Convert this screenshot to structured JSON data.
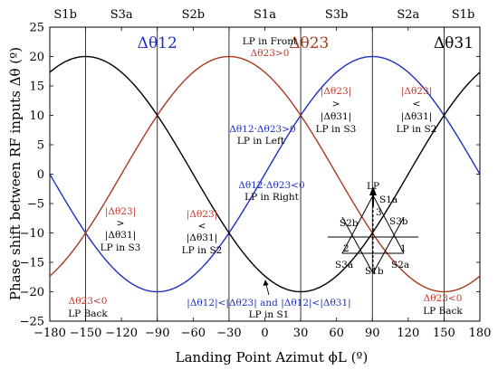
{
  "chart_data": {
    "type": "line",
    "xlabel": "Landing Point Azimut ϕL (º)",
    "ylabel": "Phase shift between RF inputs Δθ (º)",
    "xlim": [
      -180,
      180
    ],
    "ylim": [
      -25,
      25
    ],
    "xticks": [
      -180,
      -150,
      -120,
      -90,
      -60,
      -30,
      0,
      30,
      60,
      90,
      120,
      150,
      180
    ],
    "yticks": [
      -25,
      -20,
      -15,
      -10,
      -5,
      0,
      5,
      10,
      15,
      20,
      25
    ],
    "xtick_labels": [
      "−180",
      "−150",
      "−120",
      "−90",
      "−60",
      "−30",
      "0",
      "30",
      "60",
      "90",
      "120",
      "150",
      "180"
    ],
    "ytick_labels": [
      "−25",
      "−20",
      "−15",
      "−10",
      "−5",
      "0",
      "5",
      "10",
      "15",
      "20",
      "25"
    ],
    "grid": false,
    "amplitude": 20,
    "series": [
      {
        "name": "Δθ12",
        "color": "#1f2fbf",
        "phase_deg": 90,
        "label_at": [
          -90,
          21.5
        ]
      },
      {
        "name": "Δθ23",
        "color": "#a83a1e",
        "phase_deg": -30,
        "label_at": [
          37,
          21.5
        ]
      },
      {
        "name": "Δθ31",
        "color": "#000000",
        "phase_deg": -150,
        "label_at": [
          158,
          21.5
        ]
      }
    ],
    "vertical_lines": [
      -150,
      -90,
      -30,
      30,
      90,
      150
    ],
    "regions": [
      {
        "label": "S1b",
        "x": -167
      },
      {
        "label": "S3a",
        "x": -120
      },
      {
        "label": "S2b",
        "x": -60
      },
      {
        "label": "S1a",
        "x": 0
      },
      {
        "label": "S3b",
        "x": 60
      },
      {
        "label": "S2a",
        "x": 120
      },
      {
        "label": "S1b",
        "x": 166
      }
    ],
    "annotations": {
      "front": [
        "LP in Front",
        "Δθ23>0"
      ],
      "left": [
        "Δθ12·Δθ23>0",
        "LP in Left"
      ],
      "right": [
        "Δθ12·Δθ23<0",
        "LP in Right"
      ],
      "s3_right": [
        "|Δθ23|",
        ">",
        "|Δθ31|",
        "LP in S3"
      ],
      "s2_right": [
        "|Δθ23|",
        "<",
        "|Δθ31|",
        "LP in S2"
      ],
      "s3_left": [
        "|Δθ23|",
        ">",
        "|Δθ31|",
        "LP in S3"
      ],
      "s2_left": [
        "|Δθ23|",
        "<",
        "|Δθ31|",
        "LP in S2"
      ],
      "back_left": [
        "Δθ23<0",
        "LP Back"
      ],
      "back_right": [
        "Δθ23<0",
        "LP Back"
      ],
      "s1": [
        "|Δθ12|<|Δθ23| and |Δθ12|<|Δθ31|",
        "LP in S1"
      ]
    },
    "inset": {
      "labels": [
        "LP",
        "S1a",
        "S2b",
        "S3b",
        "S3a",
        "S2a",
        "S1b",
        "1",
        "2",
        "3"
      ]
    }
  }
}
